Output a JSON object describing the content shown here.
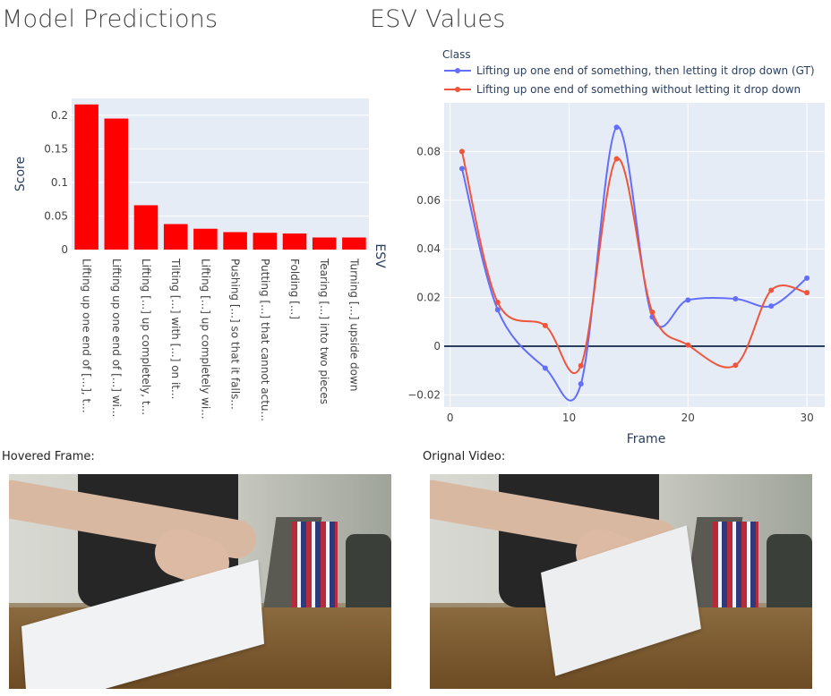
{
  "headings": {
    "predictions": "Model Predictions",
    "esv": "ESV Values"
  },
  "captions": {
    "hovered_frame": "Hovered Frame:",
    "original_video": "Orignal Video:"
  },
  "chart_data": [
    {
      "type": "bar",
      "title": "",
      "xlabel": "",
      "ylabel": "Score",
      "ylim": [
        0,
        0.225
      ],
      "yticks": [
        "0",
        "0.05",
        "0.1",
        "0.15",
        "0.2"
      ],
      "yticks_values": [
        0,
        0.05,
        0.1,
        0.15,
        0.2
      ],
      "color": "#ff0000",
      "categories": [
        "Lifting up one end of [...], t...",
        "Lifting up one end of [...] wi...",
        "Lifting [...] up completely, t...",
        "Tilting [...] with [...] on it...",
        "Lifting [...] up completely wi...",
        "Pushing [...] so that it falls...",
        "Putting [...] that cannot actu...",
        "Folding [...]",
        "Tearing [...] into two pieces",
        "Turning [...] upside down"
      ],
      "values": [
        0.216,
        0.195,
        0.066,
        0.038,
        0.031,
        0.026,
        0.025,
        0.024,
        0.018,
        0.018
      ],
      "grid": true
    },
    {
      "type": "line",
      "title": "",
      "xlabel": "Frame",
      "ylabel": "ESV",
      "xlim": [
        -0.5,
        31.5
      ],
      "ylim": [
        -0.025,
        0.1
      ],
      "xticks": [
        0,
        10,
        20,
        30
      ],
      "yticks_values": [
        -0.02,
        0,
        0.02,
        0.04,
        0.06,
        0.08
      ],
      "yticks": [
        "−0.02",
        "0",
        "0.02",
        "0.04",
        "0.06",
        "0.08"
      ],
      "legend_title": "Class",
      "legend_position": "top",
      "grid": true,
      "zero_line": true,
      "series": [
        {
          "name": "Lifting up one end of something, then letting it drop down (GT)",
          "color": "#636efa",
          "x": [
            1,
            4,
            8,
            11,
            14,
            17,
            20,
            24,
            27,
            30
          ],
          "y": [
            0.073,
            0.015,
            -0.009,
            -0.0155,
            0.09,
            0.012,
            0.019,
            0.0195,
            0.0165,
            0.028
          ]
        },
        {
          "name": "Lifting up one end of something without letting it drop down",
          "color": "#ef553b",
          "x": [
            1,
            4,
            8,
            11,
            14,
            17,
            20,
            24,
            27,
            30
          ],
          "y": [
            0.08,
            0.018,
            0.0085,
            -0.008,
            0.077,
            0.014,
            0.0005,
            -0.0078,
            0.023,
            0.022
          ]
        }
      ]
    }
  ]
}
